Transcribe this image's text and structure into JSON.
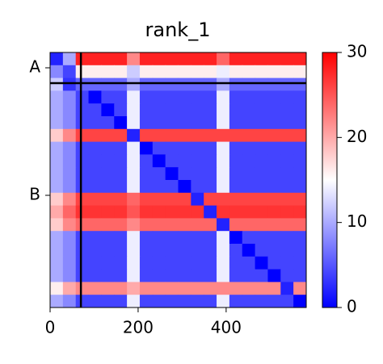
{
  "chart_data": {
    "type": "heatmap",
    "title": "rank_1",
    "colormap": "bwr",
    "xlim": [
      0,
      582
    ],
    "xticks": [
      0,
      200,
      400
    ],
    "ylim": [
      582,
      0
    ],
    "yticks": [
      {
        "value": 35,
        "label": "A"
      },
      {
        "value": 326,
        "label": "B"
      }
    ],
    "boundaries": [
      70
    ],
    "colorbar": {
      "lim": [
        0,
        30
      ],
      "ticks": [
        0,
        10,
        20,
        30
      ]
    },
    "z": [
      [
        2,
        10,
        28,
        28,
        28,
        28,
        22,
        28,
        28,
        28,
        28,
        28,
        28,
        24,
        28,
        28,
        28,
        28,
        28,
        28
      ],
      [
        8,
        4,
        16,
        16,
        16,
        16,
        12,
        16,
        16,
        16,
        16,
        16,
        16,
        14,
        16,
        16,
        16,
        16,
        16,
        16
      ],
      [
        12,
        3,
        6,
        6,
        6,
        6,
        10,
        6,
        6,
        6,
        6,
        6,
        6,
        10,
        6,
        6,
        6,
        6,
        6,
        6
      ],
      [
        10,
        8,
        4,
        0,
        4,
        4,
        14,
        4,
        4,
        4,
        4,
        4,
        4,
        14,
        4,
        4,
        4,
        4,
        4,
        4
      ],
      [
        10,
        8,
        4,
        4,
        0,
        4,
        14,
        4,
        4,
        4,
        4,
        4,
        4,
        14,
        4,
        4,
        4,
        4,
        4,
        4
      ],
      [
        10,
        8,
        4,
        4,
        4,
        0,
        14,
        4,
        4,
        4,
        4,
        4,
        4,
        14,
        4,
        4,
        4,
        4,
        4,
        4
      ],
      [
        18,
        22,
        26,
        26,
        26,
        26,
        2,
        26,
        26,
        26,
        26,
        26,
        26,
        26,
        26,
        26,
        26,
        26,
        26,
        26
      ],
      [
        10,
        8,
        4,
        4,
        4,
        4,
        14,
        0,
        4,
        4,
        4,
        4,
        4,
        14,
        4,
        4,
        4,
        4,
        4,
        4
      ],
      [
        10,
        8,
        4,
        4,
        4,
        4,
        14,
        4,
        0,
        4,
        4,
        4,
        4,
        14,
        4,
        4,
        4,
        4,
        4,
        4
      ],
      [
        10,
        8,
        4,
        4,
        4,
        4,
        14,
        4,
        4,
        0,
        4,
        4,
        4,
        14,
        4,
        4,
        4,
        4,
        4,
        4
      ],
      [
        10,
        8,
        4,
        4,
        4,
        4,
        14,
        4,
        4,
        4,
        0,
        4,
        4,
        14,
        4,
        4,
        4,
        4,
        4,
        4
      ],
      [
        18,
        22,
        26,
        26,
        26,
        26,
        24,
        26,
        26,
        26,
        26,
        2,
        26,
        26,
        26,
        26,
        26,
        26,
        26,
        26
      ],
      [
        20,
        24,
        27,
        27,
        27,
        27,
        25,
        27,
        27,
        27,
        27,
        27,
        2,
        27,
        27,
        27,
        27,
        27,
        27,
        27
      ],
      [
        18,
        22,
        24,
        24,
        24,
        24,
        22,
        24,
        24,
        24,
        24,
        24,
        24,
        2,
        24,
        24,
        24,
        24,
        24,
        24
      ],
      [
        10,
        8,
        4,
        4,
        4,
        4,
        14,
        4,
        4,
        4,
        4,
        4,
        4,
        14,
        0,
        4,
        4,
        4,
        4,
        4
      ],
      [
        10,
        8,
        4,
        4,
        4,
        4,
        14,
        4,
        4,
        4,
        4,
        4,
        4,
        14,
        4,
        0,
        4,
        4,
        4,
        4
      ],
      [
        10,
        8,
        4,
        4,
        4,
        4,
        14,
        4,
        4,
        4,
        4,
        4,
        4,
        14,
        4,
        4,
        0,
        4,
        4,
        4
      ],
      [
        10,
        8,
        4,
        4,
        4,
        4,
        14,
        4,
        4,
        4,
        4,
        4,
        4,
        14,
        4,
        4,
        4,
        0,
        4,
        4
      ],
      [
        16,
        20,
        22,
        22,
        22,
        22,
        20,
        22,
        22,
        22,
        22,
        22,
        22,
        22,
        22,
        22,
        22,
        22,
        2,
        22
      ],
      [
        10,
        8,
        4,
        4,
        4,
        4,
        14,
        4,
        4,
        4,
        4,
        4,
        4,
        14,
        4,
        4,
        4,
        4,
        4,
        0
      ]
    ]
  }
}
